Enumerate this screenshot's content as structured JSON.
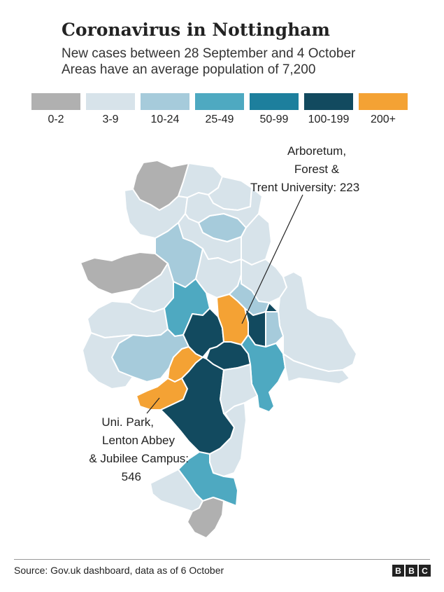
{
  "title": "Coronavirus in Nottingham",
  "subtitle_line1": "New cases between 28 September and 4 October",
  "subtitle_line2": "Areas have an average population of 7,200",
  "legend": [
    {
      "label": "0-2",
      "color": "#b0b0b0"
    },
    {
      "label": "3-9",
      "color": "#d7e3ea"
    },
    {
      "label": "10-24",
      "color": "#a6cbdb"
    },
    {
      "label": "25-49",
      "color": "#4ea9c1"
    },
    {
      "label": "50-99",
      "color": "#1d7f9d"
    },
    {
      "label": "100-199",
      "color": "#124a5f"
    },
    {
      "label": "200+",
      "color": "#f4a234"
    }
  ],
  "annotations": {
    "arboretum": {
      "line1": "Arboretum,",
      "line2": "Forest &",
      "line3": "Trent University: 223"
    },
    "unipark": {
      "line1": "Uni. Park,",
      "line2": "Lenton Abbey",
      "line3": "& Jubilee Campus:",
      "line4": "546"
    }
  },
  "source": "Source: Gov.uk dashboard, data as of 6 October",
  "logo": "BBC",
  "map_data": {
    "highlighted_areas": [
      {
        "name": "Arboretum, Forest & Trent University",
        "cases": 223
      },
      {
        "name": "Uni. Park, Lenton Abbey & Jubilee Campus",
        "cases": 546
      }
    ]
  }
}
